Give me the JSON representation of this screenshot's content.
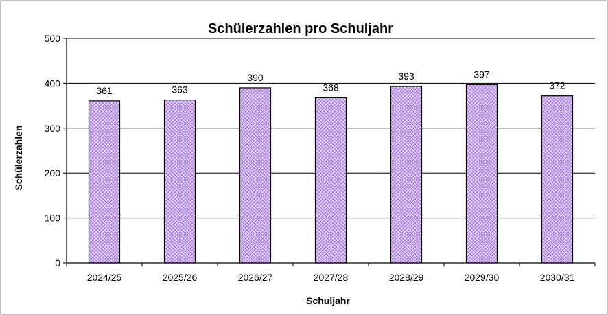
{
  "chart_data": {
    "type": "bar",
    "title": "Schülerzahlen pro Schuljahr",
    "xlabel": "Schuljahr",
    "ylabel": "Schülerzahlen",
    "categories": [
      "2024/25",
      "2025/26",
      "2026/27",
      "2027/28",
      "2028/29",
      "2029/30",
      "2030/31"
    ],
    "values": [
      361,
      363,
      390,
      368,
      393,
      397,
      372
    ],
    "data_labels": [
      "361",
      "363",
      "390",
      "368",
      "393",
      "397",
      "372"
    ],
    "ylim": [
      0,
      500
    ],
    "yticks": [
      "0",
      "100",
      "200",
      "300",
      "400",
      "500"
    ],
    "ytick_values": [
      0,
      100,
      200,
      300,
      400,
      500
    ],
    "grid": true,
    "legend": "none",
    "colors": {
      "bar_fill": "#e4d3f7",
      "bar_pattern": "#a276dc",
      "bar_stroke": "#000000",
      "gridline": "#000000",
      "frame": "#808080"
    }
  }
}
